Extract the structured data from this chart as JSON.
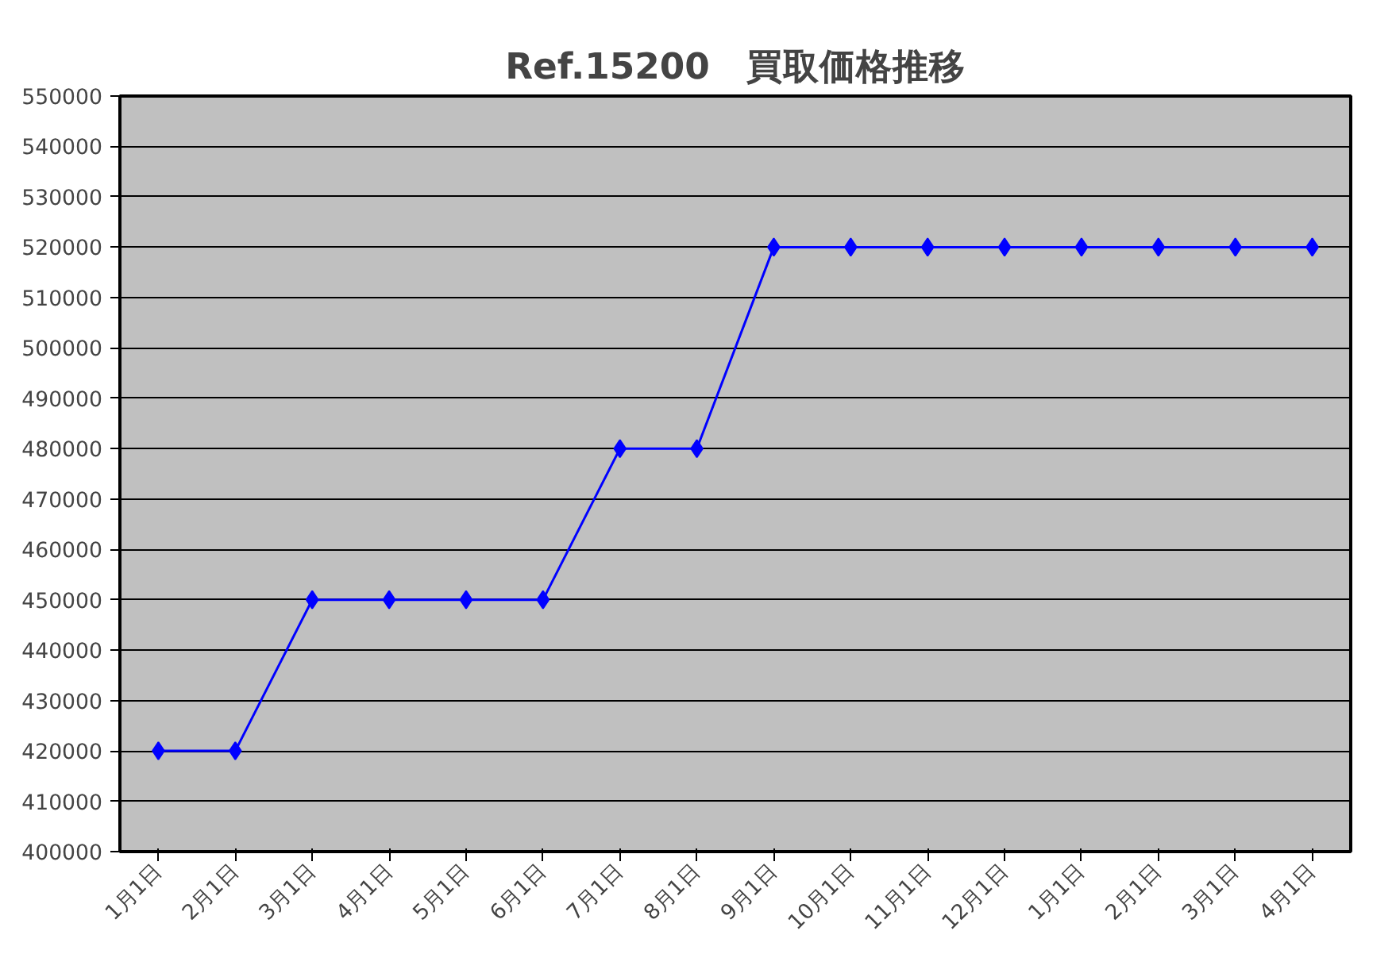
{
  "chart_data": {
    "type": "line",
    "title": "Ref.15200　買取価格推移",
    "categories": [
      "1月1日",
      "2月1日",
      "3月1日",
      "4月1日",
      "5月1日",
      "6月1日",
      "7月1日",
      "8月1日",
      "9月1日",
      "10月1日",
      "11月1日",
      "12月1日",
      "1月1日",
      "2月1日",
      "3月1日",
      "4月1日"
    ],
    "series": [
      {
        "color": "#0000ff",
        "values": [
          420000,
          420000,
          450000,
          450000,
          450000,
          450000,
          480000,
          480000,
          520000,
          520000,
          520000,
          520000,
          520000,
          520000,
          520000,
          520000
        ]
      }
    ],
    "ylim": [
      400000,
      550000
    ],
    "yticks": [
      400000,
      410000,
      420000,
      430000,
      440000,
      450000,
      460000,
      470000,
      480000,
      490000,
      500000,
      510000,
      520000,
      530000,
      540000,
      550000
    ],
    "grid": "y",
    "marker": "diamond",
    "line_style": "solid"
  }
}
